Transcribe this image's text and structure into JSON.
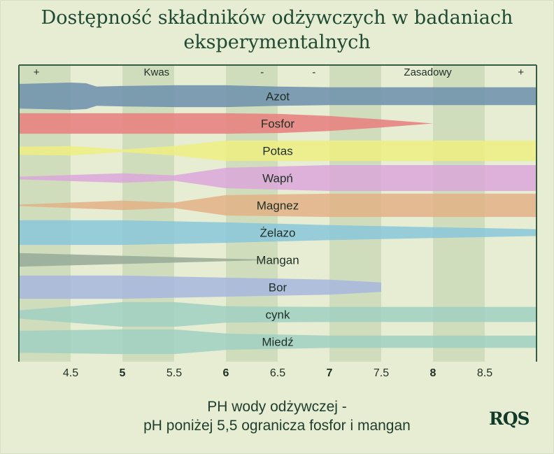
{
  "title": "Dostępność składników odżywczych w badaniach eksperymentalnych",
  "footer": {
    "line1": "PH wody odżywczej -",
    "line2": "pH poniżej 5,5 ogranicza fosfor i mangan"
  },
  "logo": "RQS",
  "colors": {
    "background": "#e6edd3",
    "band": "#cfddbc",
    "title": "#1f4a33"
  },
  "chart_data": {
    "type": "area",
    "title": "Dostępność składników odżywczych w badaniach eksperymentalnych",
    "xlabel": "PH wody odżywczej -",
    "xlim": [
      4,
      9
    ],
    "x_ticks": [
      "4.5",
      "5",
      "5.5",
      "6",
      "6.5",
      "7",
      "7.5",
      "8",
      "8.5"
    ],
    "bold_ticks": [
      "5",
      "6",
      "7",
      "8"
    ],
    "top_labels": [
      {
        "x": 4.17,
        "text": "+"
      },
      {
        "x": 5.33,
        "text": "Kwas"
      },
      {
        "x": 6.35,
        "text": "-"
      },
      {
        "x": 6.85,
        "text": "-"
      },
      {
        "x": 7.95,
        "text": "Zasadowy"
      },
      {
        "x": 8.85,
        "text": "+"
      }
    ],
    "shaded_ranges": [
      [
        4.0,
        4.5
      ],
      [
        5.0,
        5.5
      ],
      [
        6.0,
        6.5
      ],
      [
        7.0,
        7.5
      ],
      [
        8.0,
        8.5
      ]
    ],
    "series": [
      {
        "name": "Azot",
        "color": "#6f92ad",
        "x": [
          4.0,
          4.5,
          4.65,
          4.75,
          5.0,
          5.5,
          6.0,
          6.5,
          7.0,
          7.5,
          8.0,
          8.5,
          9.0
        ],
        "width": [
          0.9,
          1.0,
          0.95,
          0.7,
          0.75,
          0.8,
          0.8,
          0.7,
          0.65,
          0.65,
          0.65,
          0.65,
          0.65
        ]
      },
      {
        "name": "Fosfor",
        "color": "#e8817f",
        "x": [
          4.0,
          5.0,
          6.0,
          6.5,
          7.0,
          7.5,
          8.0
        ],
        "width": [
          0.75,
          0.75,
          0.75,
          0.7,
          0.55,
          0.3,
          0.0
        ]
      },
      {
        "name": "Potas",
        "color": "#eeee83",
        "x": [
          4.0,
          4.5,
          5.0,
          5.5,
          6.0,
          7.0,
          8.0,
          9.0
        ],
        "width": [
          0.3,
          0.35,
          0.1,
          0.35,
          0.75,
          0.75,
          0.75,
          0.75
        ]
      },
      {
        "name": "Wapń",
        "color": "#dca9d9",
        "x": [
          4.0,
          5.0,
          5.5,
          6.0,
          7.0,
          8.0,
          9.0
        ],
        "width": [
          0.1,
          0.35,
          0.2,
          0.75,
          0.95,
          0.95,
          0.95
        ]
      },
      {
        "name": "Magnez",
        "color": "#e3b388",
        "x": [
          4.0,
          5.0,
          5.5,
          6.0,
          7.0,
          8.0,
          9.0
        ],
        "width": [
          0.05,
          0.35,
          0.2,
          0.75,
          0.85,
          0.85,
          0.85
        ]
      },
      {
        "name": "Żelazo",
        "color": "#8cc7da",
        "x": [
          4.0,
          5.0,
          6.0,
          7.0,
          8.0,
          9.0
        ],
        "width": [
          0.9,
          0.9,
          0.75,
          0.55,
          0.4,
          0.25
        ]
      },
      {
        "name": "Mangan",
        "color": "#99ac99",
        "x": [
          4.0,
          5.0,
          6.0,
          6.5
        ],
        "width": [
          0.5,
          0.3,
          0.1,
          0.0
        ]
      },
      {
        "name": "Bor",
        "color": "#a9b8dd",
        "x": [
          4.0,
          5.0,
          6.0,
          7.0,
          7.5
        ],
        "width": [
          0.85,
          0.85,
          0.7,
          0.55,
          0.35
        ]
      },
      {
        "name": "cynk",
        "color": "#a2d0c1",
        "x": [
          4.0,
          5.0,
          5.5,
          6.0,
          7.0,
          8.0,
          9.0
        ],
        "width": [
          0.3,
          0.9,
          0.9,
          0.6,
          0.55,
          0.55,
          0.55
        ]
      },
      {
        "name": "Miedź",
        "color": "#a2d0c1",
        "x": [
          4.0,
          5.0,
          5.5,
          6.0,
          7.0,
          8.0,
          9.0
        ],
        "width": [
          0.8,
          0.9,
          0.9,
          0.6,
          0.45,
          0.45,
          0.45
        ]
      }
    ]
  }
}
